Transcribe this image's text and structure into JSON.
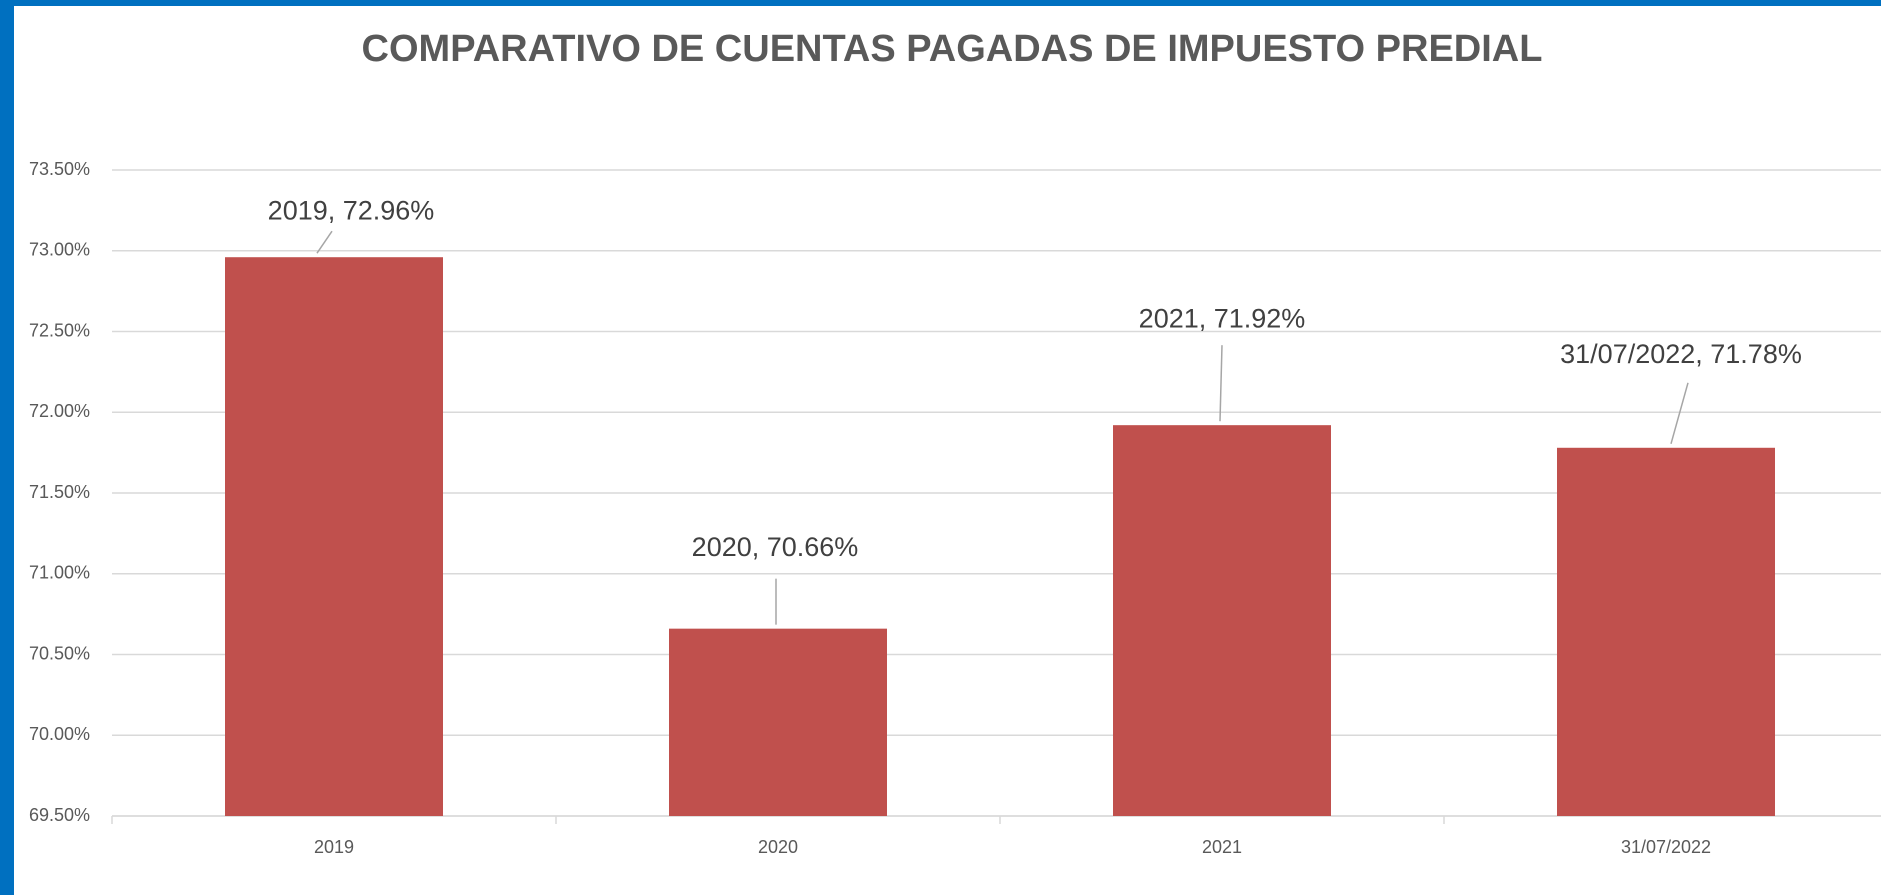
{
  "chart_data": {
    "type": "bar",
    "title": "COMPARATIVO DE CUENTAS PAGADAS DE IMPUESTO PREDIAL",
    "categories": [
      "2019",
      "2020",
      "2021",
      "31/07/2022"
    ],
    "values": [
      72.96,
      70.66,
      71.92,
      71.78
    ],
    "value_labels": [
      "2019, 72.96%",
      "2020, 70.66%",
      "2021, 71.92%",
      "31/07/2022, 71.78%"
    ],
    "color": "#c0504d",
    "ylim": [
      69.5,
      73.5
    ],
    "yticks": [
      {
        "value": 69.5,
        "label": "69.50%"
      },
      {
        "value": 70,
        "label": "70.00%"
      },
      {
        "value": 70.5,
        "label": "70.50%"
      },
      {
        "value": 71,
        "label": "71.00%"
      },
      {
        "value": 71.5,
        "label": "71.50%"
      },
      {
        "value": 72,
        "label": "72.00%"
      },
      {
        "value": 72.5,
        "label": "72.50%"
      },
      {
        "value": 73,
        "label": "73.00%"
      },
      {
        "value": 73.5,
        "label": "73.50%"
      }
    ],
    "grid": true
  }
}
